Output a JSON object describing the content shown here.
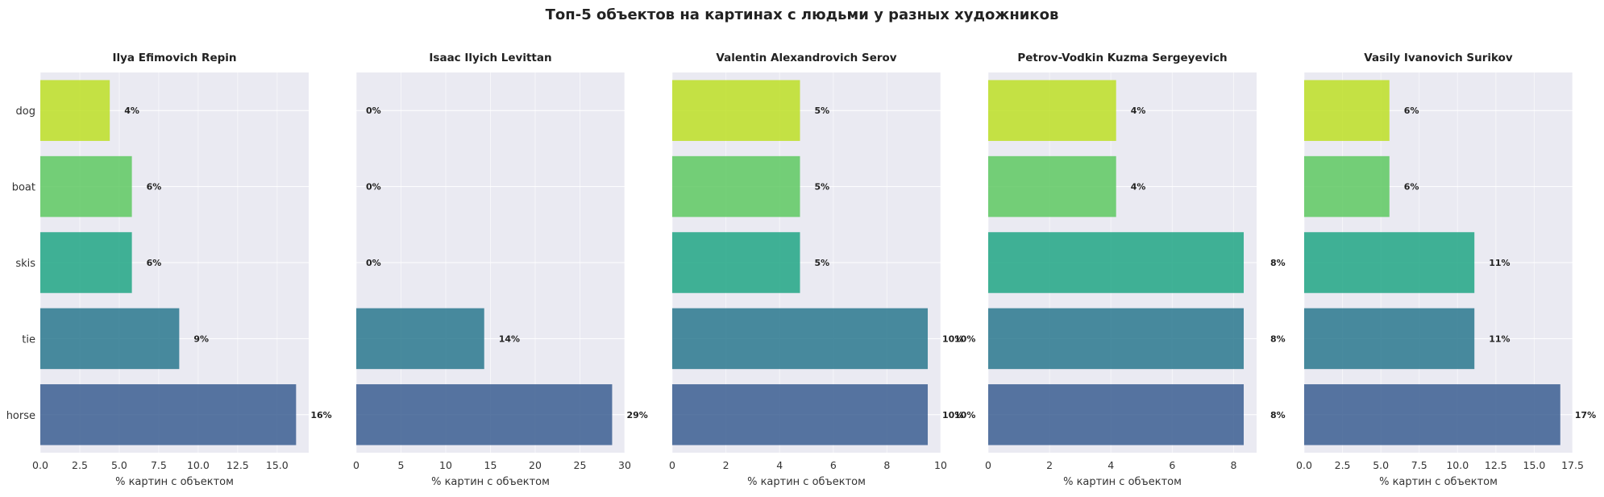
{
  "title": "Топ-5 объектов на картинах с людьми у разных художников",
  "chart_data": [
    {
      "type": "bar",
      "orientation": "horizontal",
      "title": "Ilya Efimovich Repin",
      "xlabel": "% картин с объектом",
      "categories": [
        "dog",
        "boat",
        "skis",
        "tie",
        "horse"
      ],
      "values": [
        4.4,
        5.8,
        5.8,
        8.8,
        16.2
      ],
      "value_labels": [
        "4%",
        "6%",
        "6%",
        "9%",
        "16%"
      ],
      "xlim": [
        0,
        17
      ],
      "xticks": [
        0,
        2.5,
        5,
        7.5,
        10,
        12.5,
        15
      ],
      "xtick_labels": [
        "0.0",
        "2.5",
        "5.0",
        "7.5",
        "10.0",
        "12.5",
        "15.0"
      ],
      "show_yticklabels": true,
      "grid": true
    },
    {
      "type": "bar",
      "orientation": "horizontal",
      "title": "Isaac Ilyich Levittan",
      "xlabel": "% картин с объектом",
      "categories": [
        "dog",
        "boat",
        "skis",
        "tie",
        "horse"
      ],
      "values": [
        0,
        0,
        0,
        14.3,
        28.6
      ],
      "value_labels": [
        "0%",
        "0%",
        "0%",
        "14%",
        "29%"
      ],
      "xlim": [
        0,
        30
      ],
      "xticks": [
        0,
        5,
        10,
        15,
        20,
        25,
        30
      ],
      "xtick_labels": [
        "0",
        "5",
        "10",
        "15",
        "20",
        "25",
        "30"
      ],
      "show_yticklabels": false,
      "grid": true
    },
    {
      "type": "bar",
      "orientation": "horizontal",
      "title": "Valentin Alexandrovich Serov",
      "xlabel": "% картин с объектом",
      "categories": [
        "dog",
        "boat",
        "skis",
        "tie",
        "horse"
      ],
      "values": [
        4.76,
        4.76,
        4.76,
        9.52,
        9.52
      ],
      "value_labels": [
        "5%",
        "5%",
        "5%",
        "10%",
        "10%"
      ],
      "xlim": [
        0,
        10
      ],
      "xticks": [
        0,
        2,
        4,
        6,
        8,
        10
      ],
      "xtick_labels": [
        "0",
        "2",
        "4",
        "6",
        "8",
        "10"
      ],
      "show_yticklabels": false,
      "grid": true
    },
    {
      "type": "bar",
      "orientation": "horizontal",
      "title": "Petrov-Vodkin Kuzma Sergeyevich",
      "xlabel": "% картин с объектом",
      "categories": [
        "dog",
        "boat",
        "skis",
        "tie",
        "horse"
      ],
      "values": [
        4.17,
        4.17,
        8.33,
        8.33,
        8.33
      ],
      "value_labels": [
        "4%",
        "4%",
        "",
        "",
        ""
      ],
      "xlim": [
        0,
        8.75
      ],
      "xticks": [
        0,
        2,
        4,
        6,
        8
      ],
      "xtick_labels": [
        "0",
        "2",
        "4",
        "6",
        "8"
      ],
      "show_yticklabels": false,
      "grid": true
    },
    {
      "type": "bar",
      "orientation": "horizontal",
      "title": "Vasily Ivanovich Surikov",
      "xlabel": "% картин с объектом",
      "categories": [
        "dog",
        "boat",
        "skis",
        "tie",
        "horse"
      ],
      "values": [
        5.56,
        5.56,
        11.1,
        11.1,
        16.7
      ],
      "value_labels": [
        "6%",
        "6%",
        "11%",
        "11%",
        "17%"
      ],
      "xlim": [
        0,
        17.5
      ],
      "xticks": [
        0,
        2.5,
        5,
        7.5,
        10,
        12.5,
        15,
        17.5
      ],
      "xtick_labels": [
        "0.0",
        "2.5",
        "5.0",
        "7.5",
        "10.0",
        "12.5",
        "15.0",
        "17.5"
      ],
      "show_yticklabels": false,
      "grid": true
    }
  ],
  "spillover_labels": [
    {
      "text": "10%",
      "value": 9.52,
      "panel": 2,
      "row": 4
    },
    {
      "text": "10%",
      "value": 9.52,
      "panel": 2,
      "row": 3
    },
    {
      "text": "8%",
      "value": 8.33,
      "panel": 3,
      "row": 4
    },
    {
      "text": "8%",
      "value": 8.33,
      "panel": 3,
      "row": 3
    },
    {
      "text": "8%",
      "value": 8.33,
      "panel": 3,
      "row": 2
    }
  ],
  "bar_colors": {
    "dog": "#bddf26",
    "boat": "#5ec962",
    "skis": "#21a685",
    "tie": "#2a788e",
    "horse": "#3b5e92"
  },
  "plot_background": "#eaeaf2",
  "grid_color": "#ffffff"
}
